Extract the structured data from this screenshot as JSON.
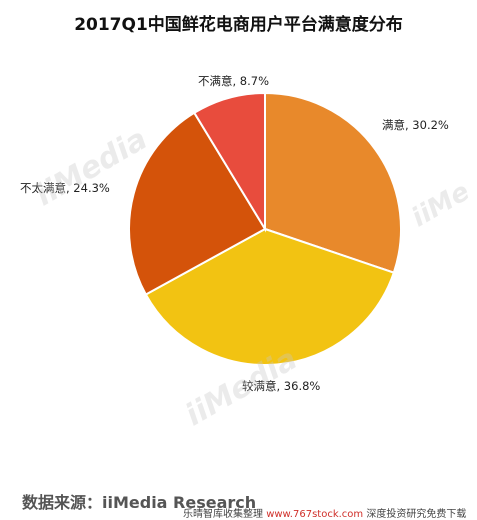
{
  "chart_data": {
    "type": "pie",
    "title": "2017Q1中国鲜花电商用户平台满意度分布",
    "slices": [
      {
        "label": "满意",
        "value": 30.2,
        "display": "满意, 30.2%",
        "color": "#E8892B"
      },
      {
        "label": "较满意",
        "value": 36.8,
        "display": "较满意, 36.8%",
        "color": "#F2C312"
      },
      {
        "label": "不太满意",
        "value": 24.3,
        "display": "不太满意, 24.3%",
        "color": "#D4530A"
      },
      {
        "label": "不满意",
        "value": 8.7,
        "display": "不满意, 8.7%",
        "color": "#E84C3D"
      }
    ],
    "start": "12 o'clock",
    "direction": "clockwise"
  },
  "source_text": "数据来源：iiMedia Research",
  "footer": {
    "prefix": "乐晴智库收集整理 ",
    "url": "www.767stock.com",
    "suffix": " 深度投资研究免费下载"
  }
}
